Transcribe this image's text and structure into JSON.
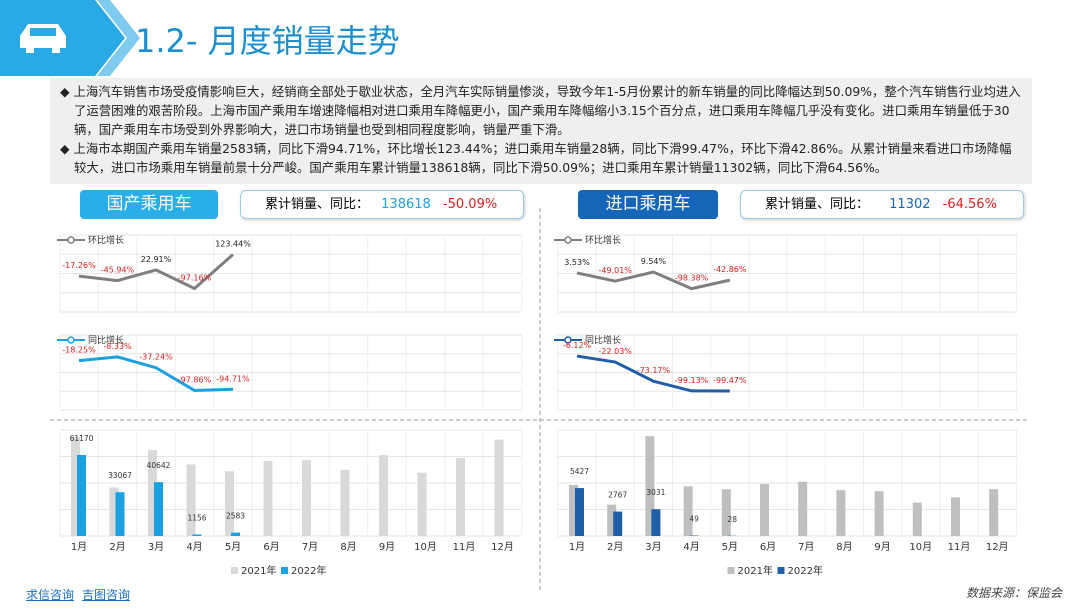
{
  "header": {
    "title": "1.2- 月度销量走势"
  },
  "bullets": [
    "上海汽车销售市场受疫情影响巨大，经销商全部处于歇业状态，全月汽车实际销量惨淡，导致今年1-5月份累计的新车销量的同比降幅达到50.09%，整个汽车销售行业均进入了运营困难的艰苦阶段。上海市国产乘用车增速降幅相对进口乘用车降幅更小，国产乘用车降幅缩小3.15个百分点，进口乘用车降幅几乎没有变化。进口乘用车销量低于30辆，国产乘用车市场受到外界影响大，进口市场销量也受到相同程度影响，销量严重下滑。",
    "上海市本期国产乘用车销量2583辆，同比下滑94.71%，环比增长123.44%；进口乘用车销量28辆，同比下滑99.47%，环比下滑42.86%。从累计销量来看进口市场降幅较大，进口市场乘用车销量前景十分严峻。国产乘用车累计销量138618辆，同比下滑50.09%；进口乘用车累计销量11302辆，同比下滑64.56%。"
  ],
  "panels": [
    {
      "name": "国产乘用车",
      "summary_label": "累计销量、同比：",
      "total": 138618,
      "yoy": "-50.09%"
    },
    {
      "name": "进口乘用车",
      "summary_label": "累计销量、同比：",
      "total": 11302,
      "yoy": "-64.56%"
    }
  ],
  "chart_data": [
    {
      "type": "line",
      "series": [
        {
          "name": "环比增长",
          "color": "#7f7f7f",
          "values": [
            -17.26,
            -45.94,
            22.91,
            -97.16,
            123.44
          ],
          "value_labels": [
            "-17.26%",
            "-45.94%",
            "22.91%",
            "-97.16%",
            "123.44%"
          ]
        }
      ],
      "ylim": [
        -250,
        250
      ]
    },
    {
      "type": "line",
      "series": [
        {
          "name": "同比增长",
          "color": "#1ba1e2",
          "values": [
            -18.25,
            -8.33,
            -37.24,
            -97.86,
            -94.71
          ],
          "value_labels": [
            "-18.25%",
            "-8.33%",
            "-37.24%",
            "-97.86%",
            "-94.71%"
          ]
        }
      ],
      "ylim": [
        -150,
        50
      ]
    },
    {
      "type": "bar",
      "categories": [
        "1月",
        "2月",
        "3月",
        "4月",
        "5月",
        "6月",
        "7月",
        "8月",
        "9月",
        "10月",
        "11月",
        "12月"
      ],
      "series": [
        {
          "name": "2021年",
          "color": "#d9d9d9",
          "values": [
            74800,
            36700,
            64760,
            54000,
            48800,
            56600,
            57300,
            50000,
            61000,
            47800,
            58800,
            72800
          ]
        },
        {
          "name": "2022年",
          "color": "#1ba1e2",
          "values": [
            61170,
            33067,
            40642,
            1156,
            2583,
            null,
            null,
            null,
            null,
            null,
            null,
            null
          ]
        }
      ],
      "ylim": [
        0,
        80000
      ]
    },
    {
      "type": "line",
      "series": [
        {
          "name": "环比增长",
          "color": "#7f7f7f",
          "values": [
            3.53,
            -49.01,
            9.54,
            -98.38,
            -42.86
          ],
          "value_labels": [
            "3.53%",
            "-49.01%",
            "9.54%",
            "-98.38%",
            "-42.86%"
          ]
        }
      ],
      "ylim": [
        -250,
        250
      ]
    },
    {
      "type": "line",
      "series": [
        {
          "name": "同比增长",
          "color": "#1f5fa8",
          "values": [
            -6.12,
            -22.03,
            -73.17,
            -99.13,
            -99.47
          ],
          "value_labels": [
            "-6.12%",
            "-22.03%",
            "-73.17%",
            "-99.13%",
            "-99.47%"
          ]
        }
      ],
      "ylim": [
        -150,
        50
      ]
    },
    {
      "type": "bar",
      "categories": [
        "1月",
        "2月",
        "3月",
        "4月",
        "5月",
        "6月",
        "7月",
        "8月",
        "9月",
        "10月",
        "11月",
        "12月"
      ],
      "series": [
        {
          "name": "2021年",
          "color": "#bfbfbf",
          "values": [
            5780,
            3548,
            11300,
            5630,
            5283,
            5900,
            6140,
            5190,
            5070,
            3780,
            4370,
            5310
          ]
        },
        {
          "name": "2022年",
          "color": "#1f5fa8",
          "values": [
            5427,
            2767,
            3031,
            49,
            28,
            null,
            null,
            null,
            null,
            null,
            null,
            null
          ]
        }
      ],
      "ylim": [
        0,
        12000
      ]
    }
  ],
  "footer": {
    "links": [
      "求信咨询",
      "吉图咨询"
    ],
    "source": "数据来源：保监会"
  }
}
